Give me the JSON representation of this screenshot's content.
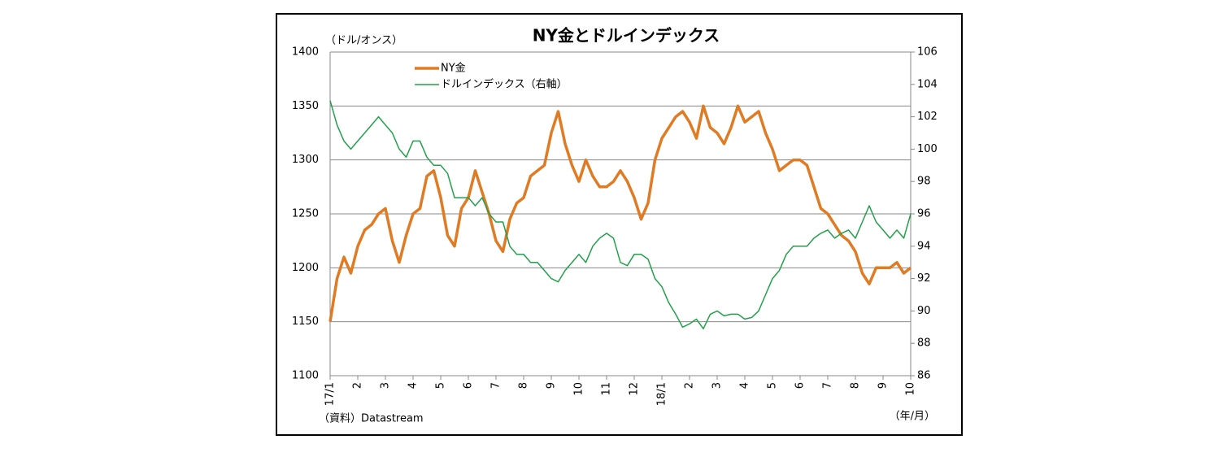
{
  "chart_data": {
    "type": "line",
    "title": "NY金とドルインデックス",
    "y_label": "（ドル/オンス）",
    "x_label": "（年/月）",
    "source": "（資料）Datastream",
    "categories": [
      "17/1",
      null,
      null,
      null,
      "2",
      null,
      null,
      null,
      "3",
      null,
      null,
      null,
      "4",
      null,
      null,
      null,
      "5",
      null,
      null,
      null,
      "6",
      null,
      null,
      null,
      "7",
      null,
      null,
      null,
      "8",
      null,
      null,
      null,
      "9",
      null,
      null,
      null,
      "10",
      null,
      null,
      null,
      "11",
      null,
      null,
      null,
      "12",
      null,
      null,
      null,
      "18/1",
      null,
      null,
      null,
      "2",
      null,
      null,
      null,
      "3",
      null,
      null,
      null,
      "4",
      null,
      null,
      null,
      "5",
      null,
      null,
      null,
      "6",
      null,
      null,
      null,
      "7",
      null,
      null,
      null,
      "8",
      null,
      null,
      null,
      "9",
      null,
      null,
      null,
      "10"
    ],
    "series": [
      {
        "name": "NY金",
        "color": "#e07b24",
        "axis": "y",
        "values": [
          1150,
          1190,
          1210,
          1195,
          1220,
          1235,
          1240,
          1250,
          1255,
          1225,
          1205,
          1230,
          1250,
          1255,
          1285,
          1290,
          1265,
          1230,
          1220,
          1255,
          1265,
          1290,
          1270,
          1250,
          1225,
          1215,
          1245,
          1260,
          1265,
          1285,
          1290,
          1295,
          1325,
          1345,
          1315,
          1295,
          1280,
          1300,
          1285,
          1275,
          1275,
          1280,
          1290,
          1280,
          1265,
          1245,
          1260,
          1300,
          1320,
          1330,
          1340,
          1345,
          1335,
          1320,
          1350,
          1330,
          1325,
          1315,
          1330,
          1350,
          1335,
          1340,
          1345,
          1325,
          1310,
          1290,
          1295,
          1300,
          1300,
          1295,
          1275,
          1255,
          1250,
          1240,
          1230,
          1225,
          1215,
          1195,
          1185,
          1200,
          1200,
          1200,
          1205,
          1195,
          1200
        ]
      },
      {
        "name": "ドルインデックス（右軸）",
        "color": "#22a04b",
        "axis": "y2",
        "values": [
          103,
          101.5,
          100.5,
          100,
          100.5,
          101,
          101.5,
          102,
          101.5,
          101,
          100,
          99.5,
          100.5,
          100.5,
          99.5,
          99,
          99,
          98.5,
          97,
          97,
          97,
          96.5,
          97,
          96,
          95.5,
          95.5,
          94,
          93.5,
          93.5,
          93,
          93,
          92.5,
          92,
          91.8,
          92.5,
          93,
          93.5,
          93,
          94,
          94.5,
          94.8,
          94.5,
          93,
          92.8,
          93.5,
          93.5,
          93.2,
          92,
          91.5,
          90.5,
          89.8,
          89,
          89.2,
          89.5,
          88.9,
          89.8,
          90,
          89.7,
          89.8,
          89.8,
          89.5,
          89.6,
          90,
          91,
          92,
          92.5,
          93.5,
          94,
          94,
          94,
          94.5,
          94.8,
          95,
          94.5,
          94.8,
          95,
          94.5,
          95.5,
          96.5,
          95.5,
          95,
          94.5,
          95,
          94.5,
          96
        ]
      }
    ],
    "ylim": [
      1100,
      1400
    ],
    "yticks": [
      1100,
      1150,
      1200,
      1250,
      1300,
      1350,
      1400
    ],
    "y2lim": [
      86,
      106
    ],
    "y2ticks": [
      86,
      88,
      90,
      92,
      94,
      96,
      98,
      100,
      102,
      104,
      106
    ],
    "grid": true
  }
}
